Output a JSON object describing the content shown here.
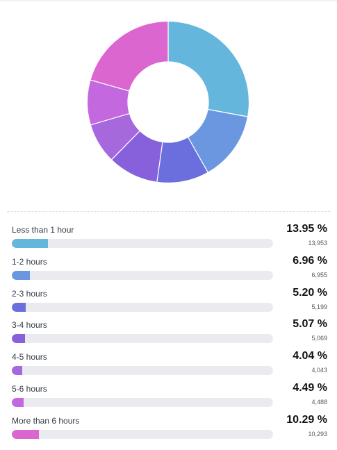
{
  "chart_data": {
    "type": "pie",
    "donut": true,
    "categories": [
      "Less than 1 hour",
      "1-2 hours",
      "2-3 hours",
      "3-4 hours",
      "4-5 hours",
      "5-6 hours",
      "More than 6 hours"
    ],
    "values": [
      13.95,
      6.96,
      5.2,
      5.07,
      4.04,
      4.49,
      10.29
    ],
    "percent_labels": [
      "13.95 %",
      "6.96 %",
      "5.20 %",
      "5.07 %",
      "4.04 %",
      "4.49 %",
      "10.29 %"
    ],
    "counts": [
      "13,953",
      "6,955",
      "5,199",
      "5,069",
      "4,043",
      "4,488",
      "10,293"
    ],
    "bar_fill_fraction": [
      0.1395,
      0.0696,
      0.052,
      0.0507,
      0.0404,
      0.0449,
      0.1029
    ],
    "colors": [
      "#65b6dc",
      "#6a97df",
      "#6a6fdd",
      "#8761db",
      "#a767dd",
      "#c468e0",
      "#db66cf"
    ]
  }
}
